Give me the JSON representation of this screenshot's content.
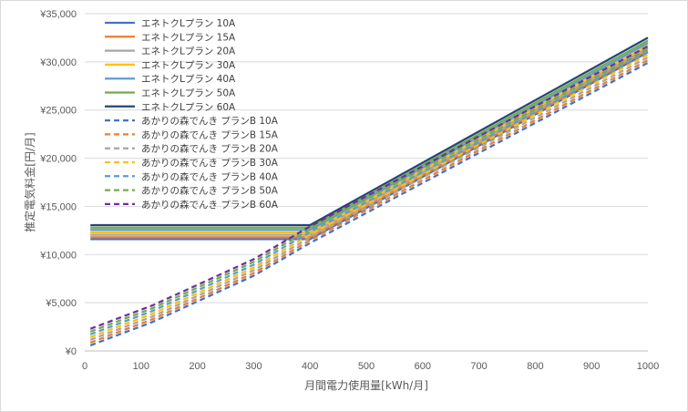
{
  "chart_data": {
    "type": "line",
    "title": "",
    "xlabel": "月間電力使用量[kWh/月]",
    "ylabel": "推定電気料金[円/月]",
    "xlim": [
      0,
      1000
    ],
    "ylim": [
      0,
      35000
    ],
    "x_ticks": [
      0,
      100,
      200,
      300,
      400,
      500,
      600,
      700,
      800,
      900,
      1000
    ],
    "y_ticks": [
      0,
      5000,
      10000,
      15000,
      20000,
      25000,
      30000,
      35000
    ],
    "y_tick_labels": [
      "¥0",
      "¥5,000",
      "¥10,000",
      "¥15,000",
      "¥20,000",
      "¥25,000",
      "¥30,000",
      "¥35,000"
    ],
    "grid": "horizontal",
    "legend_position": "top-left",
    "series": [
      {
        "name": "エネトクLプラン 10A",
        "color": "#4472C4",
        "dash": "solid",
        "x": [
          10,
          400,
          1000
        ],
        "y": [
          11600,
          11600,
          31000
        ]
      },
      {
        "name": "エネトクLプラン 15A",
        "color": "#ED7D31",
        "dash": "solid",
        "x": [
          10,
          400,
          1000
        ],
        "y": [
          11800,
          11800,
          31200
        ]
      },
      {
        "name": "エネトクLプラン 20A",
        "color": "#A5A5A5",
        "dash": "solid",
        "x": [
          10,
          400,
          1000
        ],
        "y": [
          12050,
          12050,
          31450
        ]
      },
      {
        "name": "エネトクLプラン 30A",
        "color": "#FFC000",
        "dash": "solid",
        "x": [
          10,
          400,
          1000
        ],
        "y": [
          12300,
          12300,
          31700
        ]
      },
      {
        "name": "エネトクLプラン 40A",
        "color": "#5B9BD5",
        "dash": "solid",
        "x": [
          10,
          400,
          1000
        ],
        "y": [
          12550,
          12550,
          31950
        ]
      },
      {
        "name": "エネトクLプラン 50A",
        "color": "#70AD47",
        "dash": "solid",
        "x": [
          10,
          400,
          1000
        ],
        "y": [
          12800,
          12800,
          32200
        ]
      },
      {
        "name": "エネトクLプラン 60A",
        "color": "#264478",
        "dash": "solid",
        "x": [
          10,
          400,
          1000
        ],
        "y": [
          13050,
          13050,
          32500
        ]
      },
      {
        "name": "あかりの森でんき プランB 10A",
        "color": "#4472C4",
        "dash": "dashed",
        "x": [
          10,
          120,
          300,
          400,
          1000
        ],
        "y": [
          580,
          3000,
          7800,
          11200,
          29900
        ]
      },
      {
        "name": "あかりの森でんき プランB 15A",
        "color": "#ED7D31",
        "dash": "dashed",
        "x": [
          10,
          120,
          300,
          400,
          1000
        ],
        "y": [
          860,
          3280,
          8080,
          11480,
          30180
        ]
      },
      {
        "name": "あかりの森でんき プランB 20A",
        "color": "#A5A5A5",
        "dash": "dashed",
        "x": [
          10,
          120,
          300,
          400,
          1000
        ],
        "y": [
          1150,
          3570,
          8370,
          11770,
          30470
        ]
      },
      {
        "name": "あかりの森でんき プランB 30A",
        "color": "#FFC000",
        "dash": "dashed",
        "x": [
          10,
          120,
          300,
          400,
          1000
        ],
        "y": [
          1430,
          3850,
          8650,
          12050,
          30750
        ]
      },
      {
        "name": "あかりの森でんき プランB 40A",
        "color": "#5B9BD5",
        "dash": "dashed",
        "x": [
          10,
          120,
          300,
          400,
          1000
        ],
        "y": [
          1720,
          4140,
          8940,
          12340,
          31040
        ]
      },
      {
        "name": "あかりの森でんき プランB 50A",
        "color": "#70AD47",
        "dash": "dashed",
        "x": [
          10,
          120,
          300,
          400,
          1000
        ],
        "y": [
          2010,
          4430,
          9230,
          12630,
          31330
        ]
      },
      {
        "name": "あかりの森でんき プランB 60A",
        "color": "#7030A0",
        "dash": "dashed",
        "x": [
          10,
          120,
          300,
          400,
          1000
        ],
        "y": [
          2300,
          4720,
          9520,
          12920,
          31620
        ]
      }
    ]
  }
}
